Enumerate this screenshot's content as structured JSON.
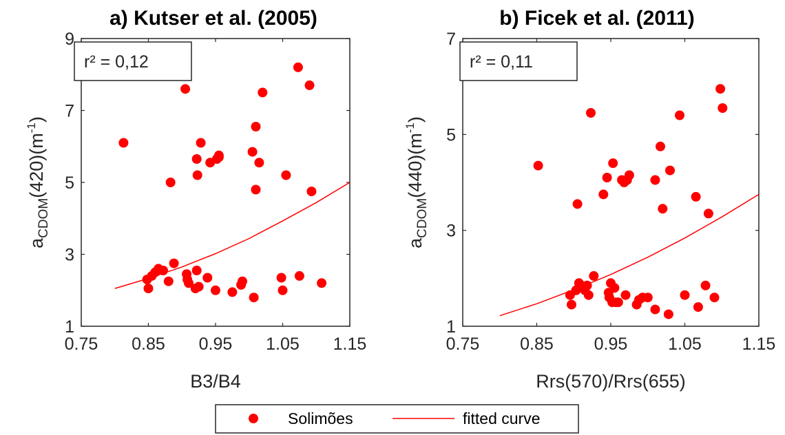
{
  "chart_data": [
    {
      "type": "scatter",
      "title": "a) Kutser et al. (2005)",
      "xlabel": "B3/B4",
      "ylabel": {
        "base": "a",
        "sub": "CDOM",
        "rest": "(420)(m",
        "sup": "-1",
        "end": ")"
      },
      "xlim": [
        0.75,
        1.15
      ],
      "ylim": [
        1,
        9
      ],
      "xticks": [
        "0.75",
        "0.85",
        "0.95",
        "1.05",
        "1.15"
      ],
      "yticks": [
        "1",
        "3",
        "5",
        "7",
        "9"
      ],
      "annotation": "r² = 0,12",
      "series": [
        {
          "name": "Solimões",
          "x": [
            0.813,
            0.848,
            0.85,
            0.855,
            0.86,
            0.865,
            0.872,
            0.88,
            0.883,
            0.888,
            0.905,
            0.907,
            0.908,
            0.91,
            0.92,
            0.922,
            0.922,
            0.923,
            0.925,
            0.928,
            0.938,
            0.942,
            0.95,
            0.952,
            0.955,
            0.955,
            0.975,
            0.988,
            0.99,
            1.005,
            1.007,
            1.01,
            1.01,
            1.015,
            1.02,
            1.048,
            1.05,
            1.055,
            1.073,
            1.075,
            1.09,
            1.093,
            1.108
          ],
          "y": [
            6.1,
            2.3,
            2.05,
            2.4,
            2.5,
            2.6,
            2.55,
            2.25,
            5.0,
            2.75,
            7.6,
            2.45,
            2.3,
            2.2,
            2.05,
            5.65,
            2.55,
            5.2,
            2.1,
            6.1,
            2.35,
            5.55,
            2.0,
            5.65,
            5.75,
            5.7,
            1.95,
            2.15,
            2.25,
            5.85,
            1.8,
            6.55,
            4.8,
            5.55,
            7.5,
            2.35,
            2.0,
            5.2,
            8.2,
            2.4,
            7.7,
            4.75,
            2.2
          ]
        },
        {
          "name": "fitted curve",
          "x": [
            0.8,
            0.85,
            0.9,
            0.95,
            1.0,
            1.05,
            1.1,
            1.15
          ],
          "y": [
            2.05,
            2.33,
            2.65,
            3.02,
            3.44,
            3.93,
            4.44,
            5.0
          ]
        }
      ]
    },
    {
      "type": "scatter",
      "title": "b) Ficek et al. (2011)",
      "xlabel": "Rrs(570)/Rrs(655)",
      "ylabel": {
        "base": "a",
        "sub": "CDOM",
        "rest": "(440)(m",
        "sup": "-1",
        "end": ")"
      },
      "xlim": [
        0.75,
        1.15
      ],
      "ylim": [
        1,
        7
      ],
      "xticks": [
        "0.75",
        "0.85",
        "0.95",
        "1.05",
        "1.15"
      ],
      "yticks": [
        "1",
        "3",
        "5",
        "7"
      ],
      "annotation": "r² = 0,11",
      "series": [
        {
          "name": "Solimões",
          "x": [
            0.852,
            0.895,
            0.897,
            0.903,
            0.905,
            0.907,
            0.91,
            0.913,
            0.915,
            0.918,
            0.92,
            0.923,
            0.927,
            0.94,
            0.945,
            0.947,
            0.948,
            0.95,
            0.952,
            0.953,
            0.955,
            0.957,
            0.96,
            0.965,
            0.968,
            0.97,
            0.972,
            0.975,
            0.985,
            0.988,
            0.993,
            1.0,
            1.01,
            1.01,
            1.017,
            1.02,
            1.028,
            1.03,
            1.043,
            1.05,
            1.065,
            1.068,
            1.078,
            1.082,
            1.09,
            1.098,
            1.101
          ],
          "y": [
            4.35,
            1.65,
            1.45,
            1.75,
            3.55,
            1.9,
            1.85,
            1.8,
            1.75,
            1.85,
            1.65,
            5.45,
            2.05,
            3.75,
            4.1,
            1.7,
            1.6,
            1.9,
            1.5,
            4.4,
            1.8,
            1.5,
            1.5,
            4.05,
            4.0,
            1.65,
            4.05,
            4.15,
            1.45,
            1.55,
            1.6,
            1.6,
            1.35,
            4.05,
            4.75,
            3.45,
            1.25,
            4.25,
            5.4,
            1.65,
            3.7,
            1.4,
            1.85,
            3.35,
            1.6,
            5.95,
            5.55
          ]
        },
        {
          "name": "fitted curve",
          "x": [
            0.8,
            0.85,
            0.9,
            0.95,
            1.0,
            1.05,
            1.1,
            1.15
          ],
          "y": [
            1.22,
            1.47,
            1.76,
            2.08,
            2.44,
            2.84,
            3.28,
            3.75
          ]
        }
      ]
    }
  ],
  "legend": {
    "items": [
      {
        "label": "Solimões",
        "kind": "marker"
      },
      {
        "label": "fitted curve",
        "kind": "line"
      }
    ],
    "placement": "bottom-center"
  },
  "colors": {
    "points": "#ff0000",
    "fit": "#ff0000",
    "axes": "#262626"
  }
}
